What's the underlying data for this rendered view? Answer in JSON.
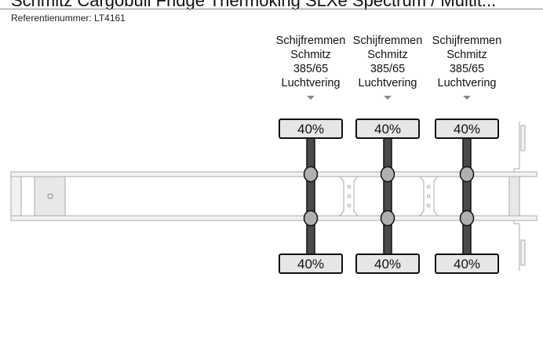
{
  "title": "Schmitz Cargobull Fridge Thermoking SLXe Spectrum / Multit...",
  "reference": "Referentienummer: LT4161",
  "axles": [
    {
      "lines": [
        "Schijfremmen",
        "Schmitz",
        "385/65",
        "Luchtvering"
      ],
      "top": "40%",
      "bottom": "40%"
    },
    {
      "lines": [
        "Schijfremmen",
        "Schmitz",
        "385/65",
        "Luchtvering"
      ],
      "top": "40%",
      "bottom": "40%"
    },
    {
      "lines": [
        "Schijfremmen",
        "Schmitz",
        "385/65",
        "Luchtvering"
      ],
      "top": "40%",
      "bottom": "40%"
    }
  ],
  "colors": {
    "axle": "#4a4a4a",
    "tyre": "#e6e6e6",
    "joint": "#b0b0b0",
    "frame": "#f2f2f2"
  }
}
